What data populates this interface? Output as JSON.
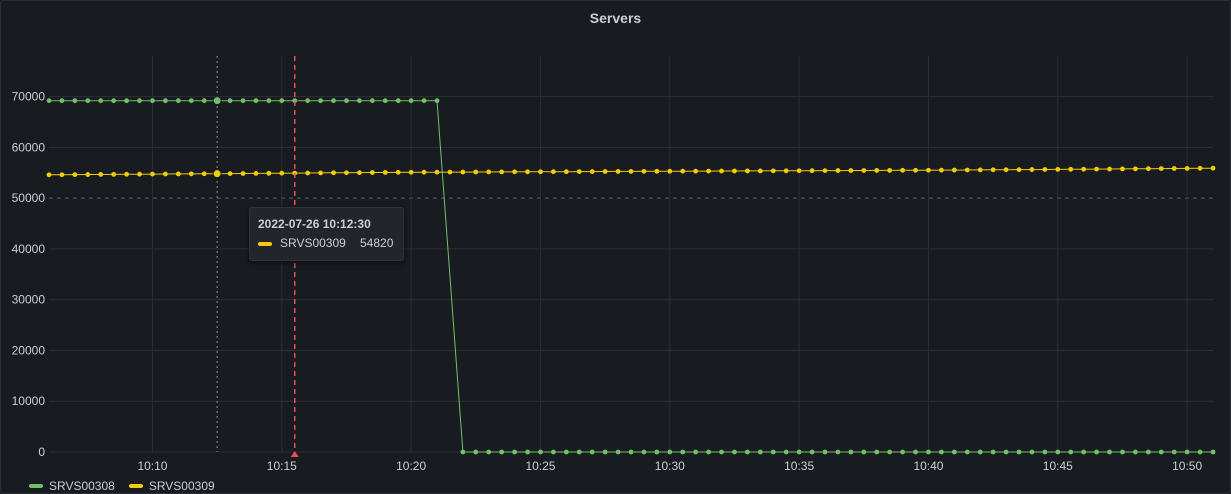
{
  "panel": {
    "title": "Servers"
  },
  "tooltip": {
    "time": "2022-07-26 10:12:30",
    "series": "SRVS00309",
    "value": "54820",
    "color": "#f2cc0c"
  },
  "legend": [
    {
      "name": "SRVS00308",
      "color": "#73bf69"
    },
    {
      "name": "SRVS00309",
      "color": "#f2cc0c"
    }
  ],
  "colors": {
    "grid": "#2c2f35",
    "threshold": "#f2495c",
    "axis_text": "#ccccdc",
    "dashed_grid": "#5a5d63"
  },
  "chart_data": {
    "type": "line",
    "title": "Servers",
    "xlabel": "",
    "ylabel": "",
    "x_range": [
      "10:06:00",
      "10:51:00"
    ],
    "ylim": [
      0,
      78000
    ],
    "y_ticks": [
      0,
      10000,
      20000,
      30000,
      40000,
      50000,
      60000,
      70000
    ],
    "y_tick_labels": [
      "0",
      "10000",
      "20000",
      "30000",
      "40000",
      "50000",
      "60000",
      "70000"
    ],
    "x_ticks": [
      "10:10",
      "10:15",
      "10:20",
      "10:25",
      "10:30",
      "10:35",
      "10:40",
      "10:45",
      "10:50"
    ],
    "threshold_y": 50000,
    "annotation_time": "10:15:30",
    "hover_time": "10:12:30",
    "sample_interval_seconds": 30,
    "grid": true,
    "legend_position": "bottom-left",
    "series": [
      {
        "name": "SRVS00308",
        "color": "#73bf69",
        "segments": [
          {
            "from": "10:06:00",
            "to": "10:21:00",
            "value": 69200
          },
          {
            "from": "10:22:00",
            "to": "10:51:00",
            "value": 0
          }
        ]
      },
      {
        "name": "SRVS00309",
        "color": "#f2cc0c",
        "points": [
          [
            "10:06:00",
            54600
          ],
          [
            "10:12:30",
            54820
          ],
          [
            "10:20:00",
            55100
          ],
          [
            "10:30:00",
            55300
          ],
          [
            "10:40:00",
            55500
          ],
          [
            "10:46:00",
            55700
          ],
          [
            "10:51:00",
            55900
          ]
        ]
      }
    ]
  }
}
